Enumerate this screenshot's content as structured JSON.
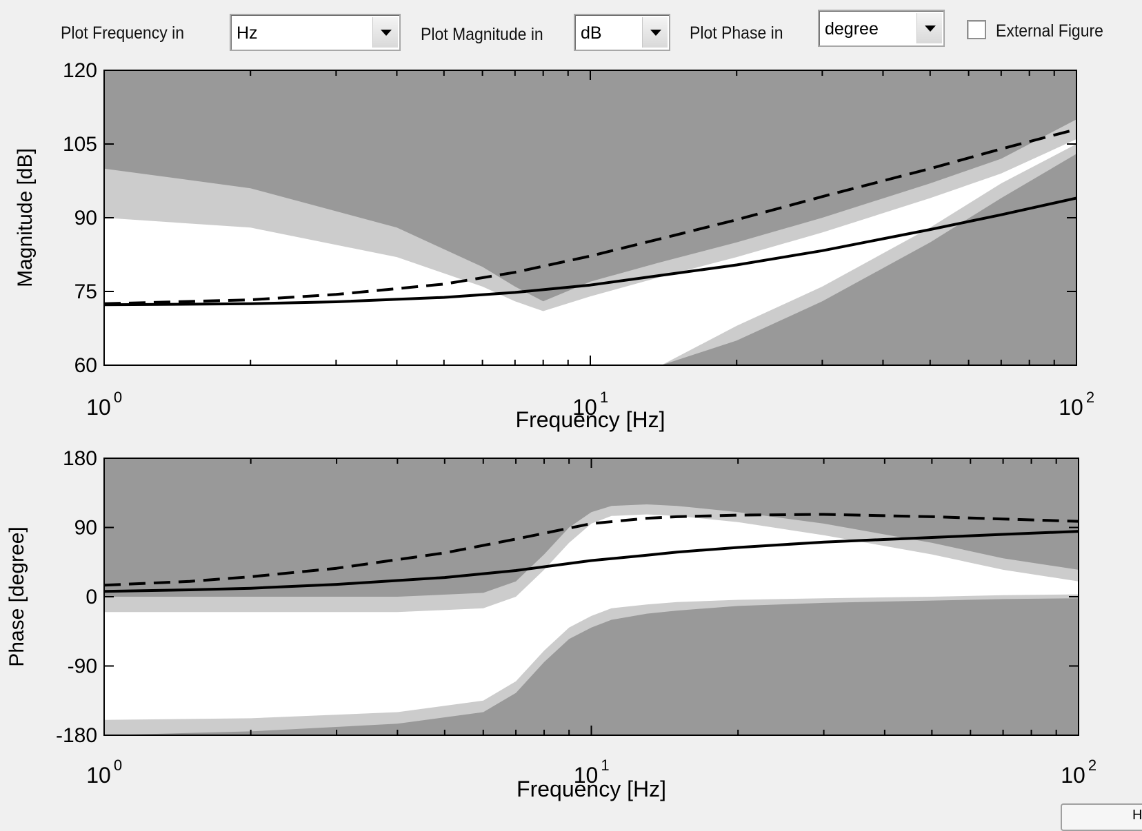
{
  "toolbar": {
    "freq_label": "Plot Frequency in",
    "freq_value": "Hz",
    "mag_label": "Plot Magnitude in",
    "mag_value": "dB",
    "phase_label": "Plot Phase in",
    "phase_value": "degree",
    "external_label": "External Figure",
    "external_checked": false
  },
  "corner_button": {
    "label": "H"
  },
  "chart_data": [
    {
      "type": "line",
      "xscale": "log",
      "xlabel": "Frequency [Hz]",
      "ylabel": "Magnitude [dB]",
      "xlim": [
        1,
        100
      ],
      "ylim": [
        60,
        120
      ],
      "yticks": [
        60,
        75,
        90,
        105,
        120
      ],
      "xticks": [
        1,
        10,
        100
      ],
      "xtick_labels": [
        {
          "base": "10",
          "exp": "0"
        },
        {
          "base": "10",
          "exp": "1"
        },
        {
          "base": "10",
          "exp": "2"
        }
      ],
      "background_color": "#999999",
      "light_band_color": "#cccccc",
      "inner_band_color": "#ffffff",
      "band_light": {
        "x": [
          1,
          2,
          4,
          6,
          7,
          8,
          10,
          14,
          20,
          30,
          50,
          70,
          100
        ],
        "upper": [
          100,
          96,
          88,
          80,
          76,
          73,
          77,
          81,
          85,
          90,
          97,
          102,
          110
        ],
        "lower": [
          60,
          60,
          60,
          60,
          60,
          60,
          60,
          60,
          65,
          73,
          85,
          94,
          103
        ]
      },
      "band_white": {
        "x": [
          1,
          2,
          4,
          6,
          7,
          8,
          10,
          14,
          20,
          30,
          50,
          70,
          100
        ],
        "upper": [
          90,
          88,
          82,
          76,
          73,
          71,
          74,
          78,
          82,
          87,
          94,
          99,
          106
        ],
        "lower": [
          60,
          60,
          60,
          60,
          60,
          60,
          60,
          60,
          68,
          76,
          88,
          97,
          105
        ]
      },
      "series": [
        {
          "style": "dashed",
          "x": [
            1,
            2,
            3,
            5,
            7,
            10,
            15,
            20,
            30,
            50,
            70,
            100
          ],
          "values": [
            72.5,
            73.3,
            74.4,
            76.5,
            78.9,
            82.2,
            86.5,
            89.6,
            94.3,
            100,
            104,
            108
          ]
        },
        {
          "style": "solid",
          "x": [
            1,
            2,
            3,
            5,
            7,
            10,
            15,
            20,
            30,
            50,
            70,
            100
          ],
          "values": [
            72.3,
            72.5,
            72.9,
            73.8,
            74.8,
            76.3,
            78.7,
            80.4,
            83.3,
            87.6,
            90.6,
            94
          ]
        }
      ]
    },
    {
      "type": "line",
      "xscale": "log",
      "xlabel": "Frequency [Hz]",
      "ylabel": "Phase [degree]",
      "xlim": [
        1,
        100
      ],
      "ylim": [
        -180,
        180
      ],
      "yticks": [
        -180,
        -90,
        0,
        90,
        180
      ],
      "xticks": [
        1,
        10,
        100
      ],
      "xtick_labels": [
        {
          "base": "10",
          "exp": "0"
        },
        {
          "base": "10",
          "exp": "1"
        },
        {
          "base": "10",
          "exp": "2"
        }
      ],
      "background_color": "#999999",
      "light_band_color": "#cccccc",
      "inner_band_color": "#ffffff",
      "band_light": {
        "x": [
          1,
          2,
          4,
          6,
          7,
          8,
          9,
          10,
          11,
          13,
          15,
          20,
          30,
          50,
          70,
          100
        ],
        "upper": [
          0,
          0,
          0,
          5,
          20,
          55,
          90,
          110,
          118,
          120,
          118,
          110,
          95,
          70,
          50,
          35
        ],
        "lower": [
          -180,
          -175,
          -165,
          -150,
          -125,
          -85,
          -55,
          -40,
          -30,
          -22,
          -18,
          -12,
          -8,
          -5,
          -3,
          -2
        ]
      },
      "band_white": {
        "x": [
          1,
          2,
          4,
          6,
          7,
          8,
          9,
          10,
          11,
          13,
          15,
          20,
          30,
          50,
          70,
          100
        ],
        "upper": [
          -20,
          -20,
          -20,
          -15,
          0,
          35,
          70,
          95,
          105,
          107,
          105,
          97,
          80,
          55,
          35,
          20
        ],
        "lower": [
          -160,
          -158,
          -150,
          -135,
          -110,
          -70,
          -40,
          -25,
          -15,
          -10,
          -7,
          -4,
          -2,
          0,
          2,
          3
        ]
      },
      "series": [
        {
          "style": "dashed",
          "x": [
            1,
            1.5,
            2,
            3,
            5,
            7,
            10,
            13,
            15,
            20,
            30,
            50,
            70,
            100
          ],
          "values": [
            15,
            20,
            26,
            37,
            57,
            75,
            95,
            102,
            104,
            106,
            107,
            104,
            101,
            98
          ]
        },
        {
          "style": "solid",
          "x": [
            1,
            1.5,
            2,
            3,
            5,
            7,
            10,
            13,
            15,
            20,
            30,
            50,
            70,
            100
          ],
          "values": [
            7,
            9,
            11,
            16,
            25,
            34,
            47,
            54,
            58,
            64,
            71,
            77,
            81,
            85
          ]
        }
      ]
    }
  ]
}
